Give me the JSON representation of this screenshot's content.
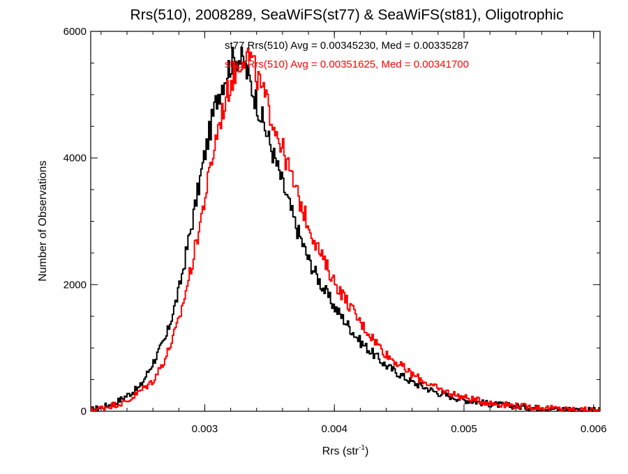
{
  "chart_data": {
    "type": "line",
    "title": "Rrs(510), 2008289, SeaWiFS(st77) & SeaWiFS(st81), Oligotrophic",
    "xlabel": "Rrs (str",
    "xlabel_sup": "-1",
    "xlabel_tail": ")",
    "ylabel": "Number of Observations",
    "xlim": [
      0.00212,
      0.00605
    ],
    "ylim": [
      0,
      6000
    ],
    "xticks": [
      0.003,
      0.004,
      0.005,
      0.006
    ],
    "xtick_labels": [
      "0.003",
      "0.004",
      "0.005",
      "0.006"
    ],
    "yticks": [
      0,
      2000,
      4000,
      6000
    ],
    "ytick_labels": [
      "0",
      "2000",
      "4000",
      "6000"
    ],
    "grid": false,
    "legend_position": "top-center",
    "annotations": [
      "st77 Rrs(510) Avg = 0.00345230, Med = 0.00335287",
      "st81 Rrs(510) Avg = 0.00351625, Med = 0.00341700"
    ],
    "series": [
      {
        "name": "st77",
        "color": "#000000",
        "curve": {
          "x": [
            0.00212,
            0.0023,
            0.0025,
            0.0027,
            0.0028,
            0.0029,
            0.003,
            0.0031,
            0.0032,
            0.00325,
            0.0033,
            0.0034,
            0.0035,
            0.0036,
            0.0037,
            0.0038,
            0.0039,
            0.004,
            0.0042,
            0.0044,
            0.0046,
            0.0048,
            0.005,
            0.0052,
            0.0055,
            0.0058,
            0.00605
          ],
          "y": [
            20,
            120,
            380,
            1150,
            1900,
            2950,
            4050,
            5000,
            5500,
            5600,
            5500,
            4900,
            4250,
            3600,
            2950,
            2400,
            2000,
            1650,
            1100,
            720,
            460,
            290,
            180,
            115,
            60,
            30,
            10
          ]
        }
      },
      {
        "name": "st81",
        "color": "#ff0000",
        "curve": {
          "x": [
            0.00212,
            0.0024,
            0.0026,
            0.0027,
            0.0028,
            0.0029,
            0.003,
            0.0031,
            0.0032,
            0.0033,
            0.00335,
            0.0034,
            0.0035,
            0.0036,
            0.0037,
            0.0038,
            0.0039,
            0.004,
            0.0042,
            0.0044,
            0.0046,
            0.0048,
            0.005,
            0.0052,
            0.0055,
            0.0058,
            0.00605
          ],
          "y": [
            10,
            150,
            480,
            850,
            1420,
            2300,
            3350,
            4450,
            5200,
            5650,
            5600,
            5300,
            4750,
            4150,
            3500,
            2950,
            2450,
            2050,
            1400,
            900,
            580,
            350,
            220,
            130,
            70,
            30,
            10
          ]
        }
      }
    ]
  }
}
